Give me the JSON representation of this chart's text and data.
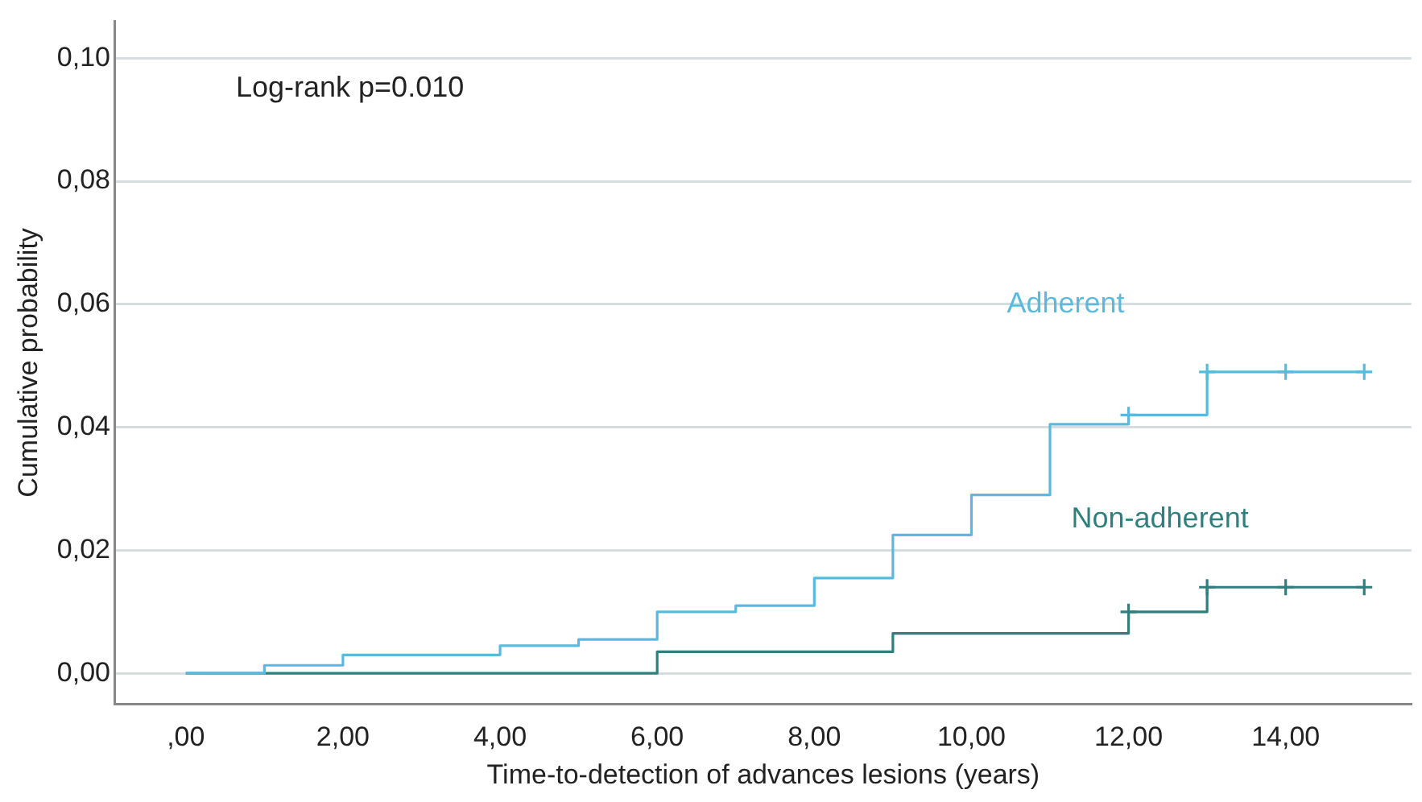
{
  "chart_data": {
    "type": "step",
    "xlabel": "Time-to-detection of advances lesions (years)",
    "ylabel": "Cumulative probability",
    "annotations": [
      "Log-rank p=0.010"
    ],
    "xlim": [
      -0.9,
      15.6
    ],
    "ylim": [
      -0.005,
      0.106
    ],
    "xticks": [
      {
        "value": 0,
        "label": ",00"
      },
      {
        "value": 2,
        "label": "2,00"
      },
      {
        "value": 4,
        "label": "4,00"
      },
      {
        "value": 6,
        "label": "6,00"
      },
      {
        "value": 8,
        "label": "8,00"
      },
      {
        "value": 10,
        "label": "10,00"
      },
      {
        "value": 12,
        "label": "12,00"
      },
      {
        "value": 14,
        "label": "14,00"
      }
    ],
    "yticks": [
      {
        "value": 0,
        "label": "0,00"
      },
      {
        "value": 0.02,
        "label": "0,02"
      },
      {
        "value": 0.04,
        "label": "0,04"
      },
      {
        "value": 0.06,
        "label": "0,06"
      },
      {
        "value": 0.08,
        "label": "0,08"
      },
      {
        "value": 0.1,
        "label": "0,10"
      }
    ],
    "grid": "y",
    "legend": false,
    "marker": "none",
    "series": [
      {
        "name": "Adherent",
        "color": "#5bb9dd",
        "x": [
          0,
          1,
          2,
          4,
          5,
          6,
          7,
          8,
          9,
          10,
          11,
          12,
          13,
          15
        ],
        "values": [
          0,
          0.0013,
          0.003,
          0.0045,
          0.0055,
          0.01,
          0.011,
          0.0155,
          0.0225,
          0.029,
          0.0405,
          0.042,
          0.049,
          0.049
        ]
      },
      {
        "name": "Non-adherent",
        "color": "#2f7f7c",
        "x": [
          0,
          6,
          9,
          12,
          13,
          15
        ],
        "values": [
          0,
          0.0035,
          0.0065,
          0.01,
          0.014,
          0.014
        ]
      },
      {
        "type": "scatter",
        "marker": "cross",
        "color": "#5bb9dd",
        "x": [
          12,
          13,
          14,
          15
        ],
        "values": [
          0.042,
          0.049,
          0.049,
          0.049
        ]
      },
      {
        "type": "scatter",
        "marker": "cross",
        "color": "#2f7f7c",
        "x": [
          12,
          13,
          14,
          15
        ],
        "values": [
          0.01,
          0.014,
          0.014,
          0.014
        ]
      }
    ]
  }
}
